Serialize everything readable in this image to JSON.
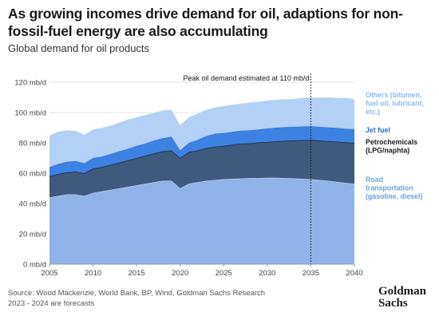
{
  "title": "As growing incomes drive demand for oil, adaptions for non-fossil-fuel energy are also accumulating",
  "subtitle": "Global demand for oil products",
  "footer": {
    "source": "Source: Wood Mackenzie, World Bank, BP, Wind, Goldman Sachs Research",
    "note": "2023 - 2024 are forecasts"
  },
  "logo": {
    "line1": "Goldman",
    "line2": "Sachs"
  },
  "chart_data": {
    "type": "area",
    "stacked": true,
    "xlim": [
      2005,
      2040
    ],
    "ylim": [
      0,
      120
    ],
    "x_ticks": [
      2005,
      2010,
      2015,
      2020,
      2025,
      2030,
      2035,
      2040
    ],
    "y_ticks": [
      0,
      20,
      40,
      60,
      80,
      100,
      120
    ],
    "y_tick_labels": [
      "0 mb/d",
      "20 mb/d",
      "40 mb/d",
      "60 mb/d",
      "80 mb/d",
      "100 mb/d",
      "120 mb/d"
    ],
    "grid": true,
    "annotation": {
      "x": 2035,
      "text": "Peak oil demand estimated at 110 mb/d"
    },
    "x": [
      2005,
      2006,
      2007,
      2008,
      2009,
      2010,
      2011,
      2012,
      2013,
      2014,
      2015,
      2016,
      2017,
      2018,
      2019,
      2020,
      2021,
      2022,
      2023,
      2024,
      2025,
      2026,
      2027,
      2028,
      2029,
      2030,
      2031,
      2032,
      2033,
      2034,
      2035,
      2036,
      2037,
      2038,
      2039,
      2040
    ],
    "series": [
      {
        "name": "Road transportation (gasoline, diesel)",
        "color": "#8fb4ea",
        "labelColor": "#6a9fe4",
        "values": [
          44,
          45,
          46,
          46,
          45,
          47,
          48,
          49,
          50,
          51,
          52,
          53,
          54,
          55,
          55,
          50,
          53,
          54,
          55,
          55.5,
          56,
          56.3,
          56.5,
          56.7,
          56.8,
          57,
          57,
          56.8,
          56.6,
          56.3,
          56,
          55.5,
          55,
          54.3,
          53.6,
          53
        ]
      },
      {
        "name": "Petrochemicals (LPG/naphta)",
        "color": "#3e5a7e",
        "labelColor": "#1a1a1a",
        "values": [
          14,
          14.5,
          14.5,
          15,
          15,
          16,
          16,
          16.5,
          17,
          17.5,
          18,
          18.5,
          19,
          19.5,
          20,
          20,
          21,
          21,
          21.5,
          22,
          22,
          22.5,
          23,
          23,
          23.5,
          23.5,
          24,
          24.5,
          25,
          25.5,
          26,
          26,
          26.2,
          26.5,
          26.7,
          27
        ]
      },
      {
        "name": "Jet fuel",
        "color": "#3d81e2",
        "labelColor": "#2a6cd6",
        "values": [
          6,
          6.5,
          7,
          7,
          6.5,
          7,
          7,
          7,
          7.5,
          7.5,
          8,
          8,
          8.5,
          8.5,
          9,
          5,
          6,
          7,
          8,
          8.5,
          8.5,
          8.5,
          8.5,
          8.5,
          8.5,
          9,
          9,
          9,
          9,
          9,
          9,
          9,
          9,
          9,
          9,
          9
        ]
      },
      {
        "name": "Others (bitumen, fuel oil, lubricant, etc.)",
        "color": "#b3d1f6",
        "labelColor": "#8fbaf0",
        "values": [
          21,
          21.5,
          21,
          20,
          19,
          19,
          19,
          19,
          19,
          19.5,
          19,
          19,
          18.5,
          18.5,
          18,
          17,
          17,
          17.5,
          17.5,
          17.5,
          18,
          18,
          18,
          18.5,
          18.5,
          18.5,
          18.5,
          18.5,
          18.5,
          19,
          19,
          19.5,
          20,
          20,
          20.5,
          20
        ]
      }
    ]
  }
}
